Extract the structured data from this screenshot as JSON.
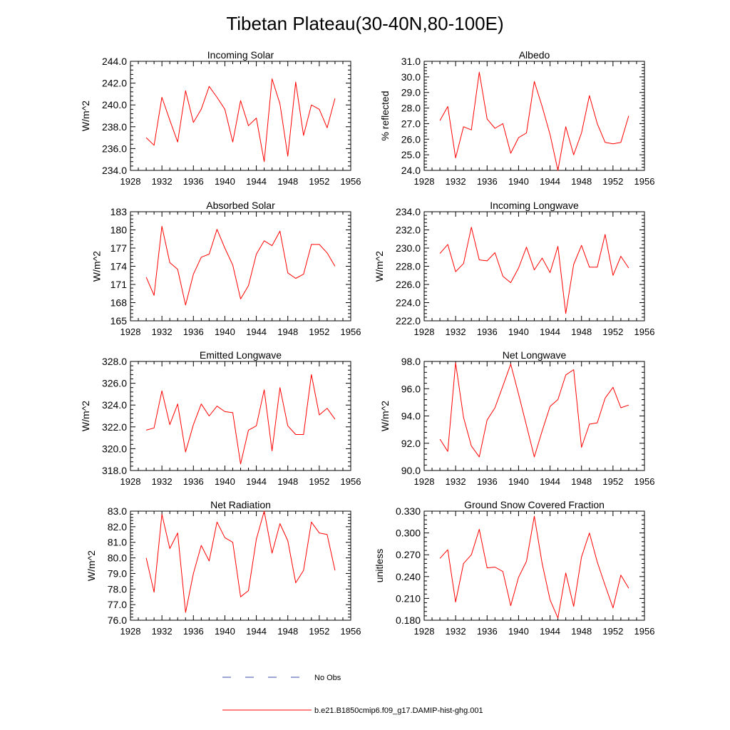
{
  "figure_title": "Tibetan Plateau(30-40N,80-100E)",
  "colors": {
    "model_line": "#ff0000",
    "obs_line": "#3b4fa8",
    "axis": "#000000"
  },
  "legend": {
    "obs_label": "No Obs",
    "model_label": "b.e21.B1850cmip6.f09_g17.DAMIP-hist-ghg.001"
  },
  "chart_data": [
    {
      "type": "line",
      "title": "Incoming Solar",
      "ylabel": "W/m^2",
      "xlim": [
        1928,
        1956
      ],
      "ylim": [
        234,
        244
      ],
      "xticks": [
        1928,
        1932,
        1936,
        1940,
        1944,
        1948,
        1952,
        1956
      ],
      "xtick_labels": [
        "1928",
        "1932",
        "1936",
        "1940",
        "1944",
        "1948",
        "1952",
        "1956"
      ],
      "yticks": [
        234,
        236,
        238,
        240,
        242,
        244
      ],
      "ytick_labels": [
        "234.0",
        "236.0",
        "238.0",
        "240.0",
        "242.0",
        "244.0"
      ],
      "x": [
        1930,
        1931,
        1932,
        1933,
        1934,
        1935,
        1936,
        1937,
        1938,
        1939,
        1940,
        1941,
        1942,
        1943,
        1944,
        1945,
        1946,
        1947,
        1948,
        1949,
        1950,
        1951,
        1952,
        1953,
        1954
      ],
      "series": [
        {
          "name": "b.e21.B1850cmip6.f09_g17.DAMIP-hist-ghg.001",
          "values": [
            237.0,
            236.3,
            240.7,
            238.6,
            236.6,
            241.3,
            238.4,
            239.6,
            241.7,
            240.7,
            239.6,
            236.6,
            240.4,
            238.1,
            238.8,
            234.8,
            242.4,
            240.1,
            235.3,
            242.1,
            237.2,
            240.0,
            239.6,
            237.9,
            240.6
          ]
        }
      ]
    },
    {
      "type": "line",
      "title": "Albedo",
      "ylabel": "% reflected",
      "xlim": [
        1928,
        1956
      ],
      "ylim": [
        24,
        31
      ],
      "xticks": [
        1928,
        1932,
        1936,
        1940,
        1944,
        1948,
        1952,
        1956
      ],
      "xtick_labels": [
        "1928",
        "1932",
        "1936",
        "1940",
        "1944",
        "1948",
        "1952",
        "1956"
      ],
      "yticks": [
        24,
        25,
        26,
        27,
        28,
        29,
        30,
        31
      ],
      "ytick_labels": [
        "24.0",
        "25.0",
        "26.0",
        "27.0",
        "28.0",
        "29.0",
        "30.0",
        "31.0"
      ],
      "x": [
        1930,
        1931,
        1932,
        1933,
        1934,
        1935,
        1936,
        1937,
        1938,
        1939,
        1940,
        1941,
        1942,
        1943,
        1944,
        1945,
        1946,
        1947,
        1948,
        1949,
        1950,
        1951,
        1952,
        1953,
        1954
      ],
      "series": [
        {
          "name": "b.e21.B1850cmip6.f09_g17.DAMIP-hist-ghg.001",
          "values": [
            27.2,
            28.1,
            24.8,
            26.8,
            26.6,
            30.3,
            27.3,
            26.7,
            27.0,
            25.1,
            26.1,
            26.4,
            29.7,
            28.1,
            26.3,
            24.0,
            26.8,
            25.0,
            26.4,
            28.8,
            27.0,
            25.8,
            25.7,
            25.8,
            27.5
          ]
        }
      ]
    },
    {
      "type": "line",
      "title": "Absorbed Solar",
      "ylabel": "W/m^2",
      "xlim": [
        1928,
        1956
      ],
      "ylim": [
        165,
        183
      ],
      "xticks": [
        1928,
        1932,
        1936,
        1940,
        1944,
        1948,
        1952,
        1956
      ],
      "xtick_labels": [
        "1928",
        "1932",
        "1936",
        "1940",
        "1944",
        "1948",
        "1952",
        "1956"
      ],
      "yticks": [
        165,
        168,
        171,
        174,
        177,
        180,
        183
      ],
      "ytick_labels": [
        "165",
        "168",
        "171",
        "174",
        "177",
        "180",
        "183"
      ],
      "x": [
        1930,
        1931,
        1932,
        1933,
        1934,
        1935,
        1936,
        1937,
        1938,
        1939,
        1940,
        1941,
        1942,
        1943,
        1944,
        1945,
        1946,
        1947,
        1948,
        1949,
        1950,
        1951,
        1952,
        1953,
        1954
      ],
      "series": [
        {
          "name": "b.e21.B1850cmip6.f09_g17.DAMIP-hist-ghg.001",
          "values": [
            172.2,
            169.2,
            180.6,
            174.6,
            173.5,
            167.6,
            172.7,
            175.5,
            176.0,
            180.1,
            177.0,
            174.2,
            168.6,
            170.8,
            176.0,
            178.2,
            177.4,
            179.8,
            172.9,
            172.0,
            172.7,
            177.6,
            177.6,
            176.2,
            174.0
          ]
        }
      ]
    },
    {
      "type": "line",
      "title": "Incoming Longwave",
      "ylabel": "W/m^2",
      "xlim": [
        1928,
        1956
      ],
      "ylim": [
        222,
        234
      ],
      "xticks": [
        1928,
        1932,
        1936,
        1940,
        1944,
        1948,
        1952,
        1956
      ],
      "xtick_labels": [
        "1928",
        "1932",
        "1936",
        "1940",
        "1944",
        "1948",
        "1952",
        "1956"
      ],
      "yticks": [
        222,
        224,
        226,
        228,
        230,
        232,
        234
      ],
      "ytick_labels": [
        "222.0",
        "224.0",
        "226.0",
        "228.0",
        "230.0",
        "232.0",
        "234.0"
      ],
      "x": [
        1930,
        1931,
        1932,
        1933,
        1934,
        1935,
        1936,
        1937,
        1938,
        1939,
        1940,
        1941,
        1942,
        1943,
        1944,
        1945,
        1946,
        1947,
        1948,
        1949,
        1950,
        1951,
        1952,
        1953,
        1954
      ],
      "series": [
        {
          "name": "b.e21.B1850cmip6.f09_g17.DAMIP-hist-ghg.001",
          "values": [
            229.4,
            230.4,
            227.4,
            228.3,
            232.3,
            228.7,
            228.6,
            229.5,
            226.9,
            226.2,
            227.8,
            230.1,
            227.6,
            228.9,
            227.3,
            230.2,
            222.8,
            228.2,
            230.3,
            227.9,
            227.9,
            231.5,
            227.0,
            229.1,
            227.8
          ]
        }
      ]
    },
    {
      "type": "line",
      "title": "Emitted Longwave",
      "ylabel": "W/m^2",
      "xlim": [
        1928,
        1956
      ],
      "ylim": [
        318,
        328
      ],
      "xticks": [
        1928,
        1932,
        1936,
        1940,
        1944,
        1948,
        1952,
        1956
      ],
      "xtick_labels": [
        "1928",
        "1932",
        "1936",
        "1940",
        "1944",
        "1948",
        "1952",
        "1956"
      ],
      "yticks": [
        318,
        320,
        322,
        324,
        326,
        328
      ],
      "ytick_labels": [
        "318.0",
        "320.0",
        "322.0",
        "324.0",
        "326.0",
        "328.0"
      ],
      "x": [
        1930,
        1931,
        1932,
        1933,
        1934,
        1935,
        1936,
        1937,
        1938,
        1939,
        1940,
        1941,
        1942,
        1943,
        1944,
        1945,
        1946,
        1947,
        1948,
        1949,
        1950,
        1951,
        1952,
        1953,
        1954
      ],
      "series": [
        {
          "name": "b.e21.B1850cmip6.f09_g17.DAMIP-hist-ghg.001",
          "values": [
            321.7,
            321.9,
            325.3,
            322.2,
            324.1,
            319.7,
            322.2,
            324.1,
            323.0,
            323.9,
            323.4,
            323.3,
            318.6,
            321.7,
            322.1,
            325.4,
            319.8,
            325.6,
            322.1,
            321.3,
            321.3,
            326.8,
            323.1,
            323.7,
            322.7
          ]
        }
      ]
    },
    {
      "type": "line",
      "title": "Net Longwave",
      "ylabel": "W/m^2",
      "xlim": [
        1928,
        1956
      ],
      "ylim": [
        90,
        98
      ],
      "xticks": [
        1928,
        1932,
        1936,
        1940,
        1944,
        1948,
        1952,
        1956
      ],
      "xtick_labels": [
        "1928",
        "1932",
        "1936",
        "1940",
        "1944",
        "1948",
        "1952",
        "1956"
      ],
      "yticks": [
        90,
        92,
        94,
        96,
        98
      ],
      "ytick_labels": [
        "90.0",
        "92.0",
        "94.0",
        "96.0",
        "98.0"
      ],
      "x": [
        1930,
        1931,
        1932,
        1933,
        1934,
        1935,
        1936,
        1937,
        1938,
        1939,
        1940,
        1941,
        1942,
        1943,
        1944,
        1945,
        1946,
        1947,
        1948,
        1949,
        1950,
        1951,
        1952,
        1953,
        1954
      ],
      "series": [
        {
          "name": "b.e21.B1850cmip6.f09_g17.DAMIP-hist-ghg.001",
          "values": [
            92.3,
            91.4,
            97.9,
            93.9,
            91.8,
            91.0,
            93.7,
            94.6,
            96.2,
            97.8,
            95.6,
            93.3,
            91.0,
            92.9,
            94.7,
            95.2,
            97.0,
            97.4,
            91.7,
            93.4,
            93.5,
            95.3,
            96.1,
            94.6,
            94.8
          ]
        }
      ]
    },
    {
      "type": "line",
      "title": "Net Radiation",
      "ylabel": "W/m^2",
      "xlim": [
        1928,
        1956
      ],
      "ylim": [
        76,
        83
      ],
      "xticks": [
        1928,
        1932,
        1936,
        1940,
        1944,
        1948,
        1952,
        1956
      ],
      "xtick_labels": [
        "1928",
        "1932",
        "1936",
        "1940",
        "1944",
        "1948",
        "1952",
        "1956"
      ],
      "yticks": [
        76,
        77,
        78,
        79,
        80,
        81,
        82,
        83
      ],
      "ytick_labels": [
        "76.0",
        "77.0",
        "78.0",
        "79.0",
        "80.0",
        "81.0",
        "82.0",
        "83.0"
      ],
      "x": [
        1930,
        1931,
        1932,
        1933,
        1934,
        1935,
        1936,
        1937,
        1938,
        1939,
        1940,
        1941,
        1942,
        1943,
        1944,
        1945,
        1946,
        1947,
        1948,
        1949,
        1950,
        1951,
        1952,
        1953,
        1954
      ],
      "series": [
        {
          "name": "b.e21.B1850cmip6.f09_g17.DAMIP-hist-ghg.001",
          "values": [
            80.0,
            77.8,
            82.8,
            80.6,
            81.6,
            76.5,
            79.0,
            80.8,
            79.8,
            82.3,
            81.3,
            81.0,
            77.5,
            77.9,
            81.2,
            83.0,
            80.3,
            82.2,
            81.1,
            78.4,
            79.2,
            82.3,
            81.6,
            81.5,
            79.2
          ]
        }
      ]
    },
    {
      "type": "line",
      "title": "Ground Snow Covered Fraction",
      "ylabel": "unitless",
      "xlim": [
        1928,
        1956
      ],
      "ylim": [
        0.18,
        0.33
      ],
      "xticks": [
        1928,
        1932,
        1936,
        1940,
        1944,
        1948,
        1952,
        1956
      ],
      "xtick_labels": [
        "1928",
        "1932",
        "1936",
        "1940",
        "1944",
        "1948",
        "1952",
        "1956"
      ],
      "yticks": [
        0.18,
        0.21,
        0.24,
        0.27,
        0.3,
        0.33
      ],
      "ytick_labels": [
        "0.180",
        "0.210",
        "0.240",
        "0.270",
        "0.300",
        "0.330"
      ],
      "x": [
        1930,
        1931,
        1932,
        1933,
        1934,
        1935,
        1936,
        1937,
        1938,
        1939,
        1940,
        1941,
        1942,
        1943,
        1944,
        1945,
        1946,
        1947,
        1948,
        1949,
        1950,
        1951,
        1952,
        1953,
        1954
      ],
      "series": [
        {
          "name": "b.e21.B1850cmip6.f09_g17.DAMIP-hist-ghg.001",
          "values": [
            0.265,
            0.277,
            0.205,
            0.258,
            0.27,
            0.305,
            0.252,
            0.253,
            0.247,
            0.2,
            0.239,
            0.261,
            0.323,
            0.258,
            0.208,
            0.183,
            0.245,
            0.199,
            0.267,
            0.3,
            0.26,
            0.228,
            0.197,
            0.242,
            0.224
          ]
        }
      ]
    }
  ]
}
